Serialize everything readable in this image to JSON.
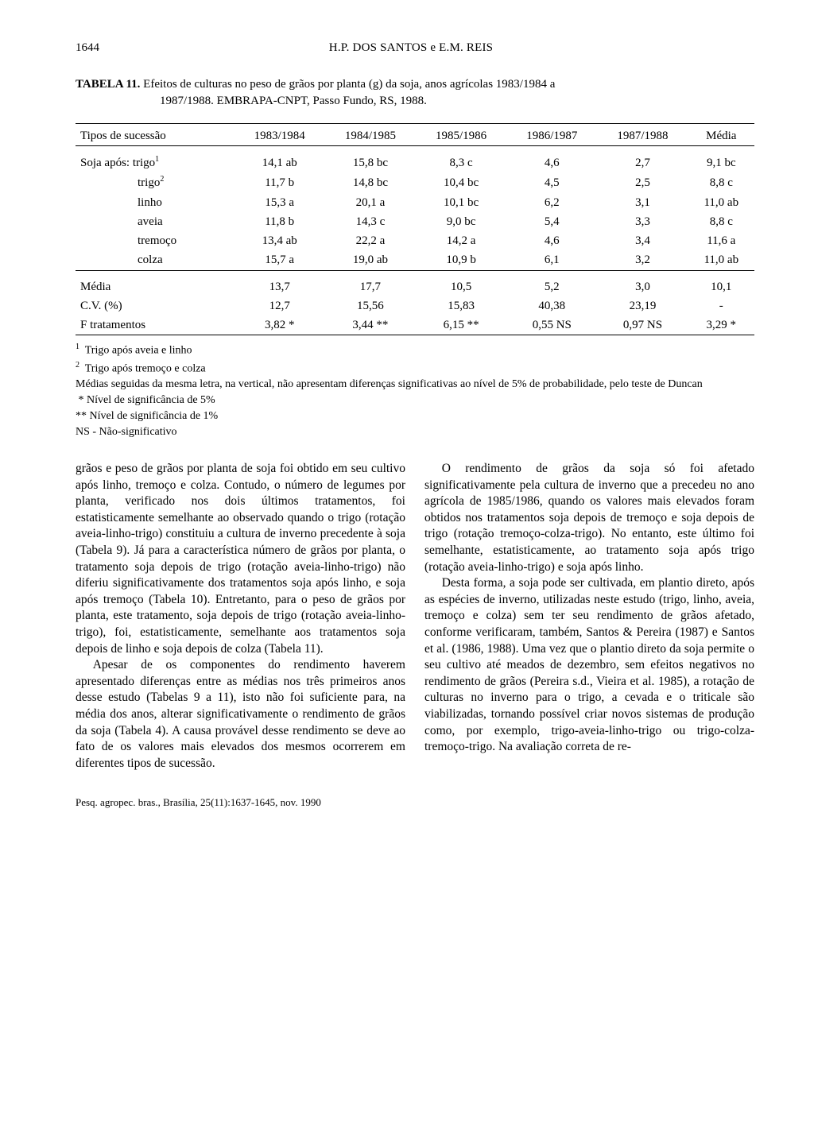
{
  "page_number": "1644",
  "running_head": "H.P. DOS SANTOS e E.M. REIS",
  "table": {
    "caption_label": "TABELA 11.",
    "caption_line1": "Efeitos de culturas no peso de grãos por planta (g) da soja, anos agrícolas 1983/1984 a",
    "caption_line2": "1987/1988. EMBRAPA-CNPT, Passo Fundo, RS, 1988.",
    "columns": [
      "Tipos de sucessão",
      "1983/1984",
      "1984/1985",
      "1985/1986",
      "1986/1987",
      "1987/1988",
      "Média"
    ],
    "rows_main": [
      {
        "label": "Soja após: trigo",
        "sup": "1",
        "vals": [
          "14,1 ab",
          "15,8 bc",
          "8,3 c",
          "4,6",
          "2,7",
          "9,1 bc"
        ]
      },
      {
        "label": "trigo",
        "sup": "2",
        "sub": true,
        "vals": [
          "11,7 b",
          "14,8 bc",
          "10,4 bc",
          "4,5",
          "2,5",
          "8,8 c"
        ]
      },
      {
        "label": "linho",
        "sub": true,
        "vals": [
          "15,3 a",
          "20,1 a",
          "10,1 bc",
          "6,2",
          "3,1",
          "11,0 ab"
        ]
      },
      {
        "label": "aveia",
        "sub": true,
        "vals": [
          "11,8 b",
          "14,3 c",
          "9,0 bc",
          "5,4",
          "3,3",
          "8,8 c"
        ]
      },
      {
        "label": "tremoço",
        "sub": true,
        "vals": [
          "13,4 ab",
          "22,2 a",
          "14,2 a",
          "4,6",
          "3,4",
          "11,6 a"
        ]
      },
      {
        "label": "colza",
        "sub": true,
        "vals": [
          "15,7 a",
          "19,0 ab",
          "10,9 b",
          "6,1",
          "3,2",
          "11,0 ab"
        ]
      }
    ],
    "rows_summary": [
      {
        "label": "Média",
        "vals": [
          "13,7",
          "17,7",
          "10,5",
          "5,2",
          "3,0",
          "10,1"
        ]
      },
      {
        "label": "C.V. (%)",
        "vals": [
          "12,7",
          "15,56",
          "15,83",
          "40,38",
          "23,19",
          "-"
        ]
      },
      {
        "label": "F tratamentos",
        "vals": [
          "3,82 *",
          "3,44 **",
          "6,15 **",
          "0,55 NS",
          "0,97 NS",
          "3,29 *"
        ]
      }
    ]
  },
  "footnotes": {
    "f1": "Trigo após aveia e linho",
    "f2": "Trigo após tremoço e colza",
    "means_note": "Médias seguidas da mesma letra, na vertical, não apresentam diferenças significativas ao nível de 5% de probabilidade, pelo teste de Duncan",
    "sig5": "* Nível de significância de 5%",
    "sig1": "** Nível de significância de 1%",
    "ns": "NS - Não-significativo"
  },
  "body": {
    "p1": "grãos e peso de grãos por planta de soja foi obtido em seu cultivo após linho, tremoço e colza. Contudo, o número de legumes por planta, verificado nos dois últimos tratamentos, foi estatisticamente semelhante ao observado quando o trigo (rotação aveia-linho-trigo) constituiu a cultura de inverno precedente à soja (Tabela 9). Já para a característica número de grãos por planta, o tratamento soja depois de trigo (rotação aveia-linho-trigo) não diferiu significativamente dos tratamentos soja após linho, e soja após tremoço (Tabela 10). Entretanto, para o peso de grãos por planta, este tratamento, soja depois de trigo (rotação aveia-linho-trigo), foi, estatisticamente, semelhante aos tratamentos soja depois de linho e soja depois de colza (Tabela 11).",
    "p2": "Apesar de os componentes do rendimento haverem apresentado diferenças entre as médias nos três primeiros anos desse estudo (Tabelas 9 a 11), isto não foi suficiente para, na média dos anos, alterar significativamente o rendimento de grãos da soja (Tabela 4). A causa provável desse rendimento se deve ao fato de os valores mais elevados dos mesmos ocorrerem em diferentes tipos de sucessão.",
    "p3": "O rendimento de grãos da soja só foi afetado significativamente pela cultura de inverno que a precedeu no ano agrícola de 1985/1986, quando os valores mais elevados foram obtidos nos tratamentos soja depois de tremoço e soja depois de trigo (rotação tremoço-colza-trigo). No entanto, este último foi semelhante, estatisticamente, ao tratamento soja após trigo (rotação aveia-linho-trigo) e soja após linho.",
    "p4": "Desta forma, a soja pode ser cultivada, em plantio direto, após as espécies de inverno, utilizadas neste estudo (trigo, linho, aveia, tremoço e colza) sem ter seu rendimento de grãos afetado, conforme verificaram, também, Santos & Pereira (1987) e Santos et al. (1986, 1988). Uma vez que o plantio direto da soja permite o seu cultivo até meados de dezembro, sem efeitos negativos no rendimento de grãos (Pereira s.d., Vieira et al. 1985), a rotação de culturas no inverno para o trigo, a cevada e o triticale são viabilizadas, tornando possível criar novos sistemas de produção como, por exemplo, trigo-aveia-linho-trigo ou trigo-colza-tremoço-trigo. Na avaliação correta de re-"
  },
  "footer_citation": "Pesq. agropec. bras., Brasília, 25(11):1637-1645, nov. 1990"
}
